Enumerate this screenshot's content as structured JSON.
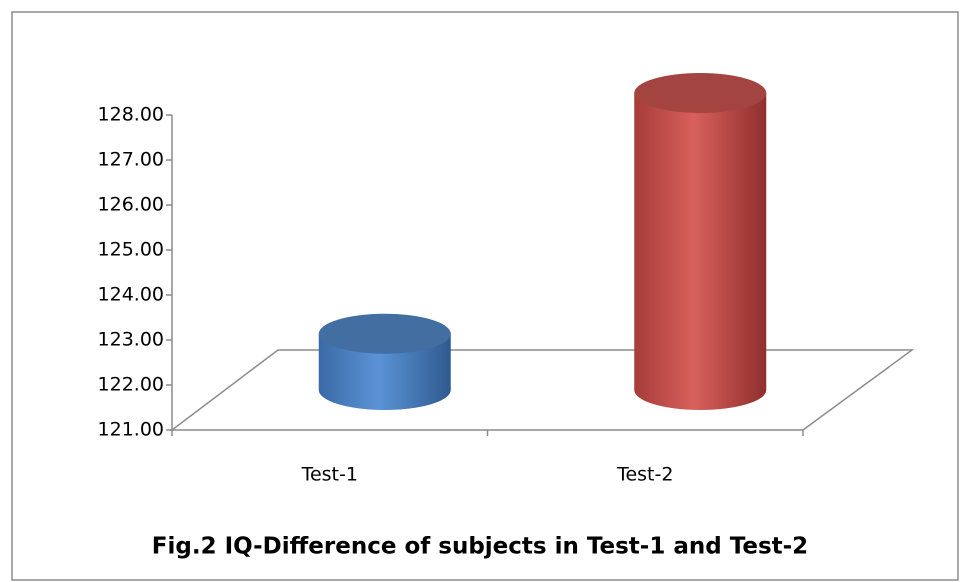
{
  "chart_data": {
    "type": "bar3d",
    "title": "Fig.2 IQ-Difference of subjects in Test-1 and Test-2",
    "categories": [
      "Test-1",
      "Test-2"
    ],
    "values": [
      122.25,
      127.6
    ],
    "colors": [
      "#4f81bd",
      "#c0504d"
    ],
    "ylim": [
      121,
      128
    ],
    "yticks": [
      {
        "value": 121,
        "label": "121.00"
      },
      {
        "value": 122,
        "label": "122.00"
      },
      {
        "value": 123,
        "label": "123.00"
      },
      {
        "value": 124,
        "label": "124.00"
      },
      {
        "value": 125,
        "label": "125.00"
      },
      {
        "value": 126,
        "label": "126.00"
      },
      {
        "value": 127,
        "label": "127.00"
      },
      {
        "value": 128,
        "label": "128.00"
      }
    ],
    "grid": false
  }
}
